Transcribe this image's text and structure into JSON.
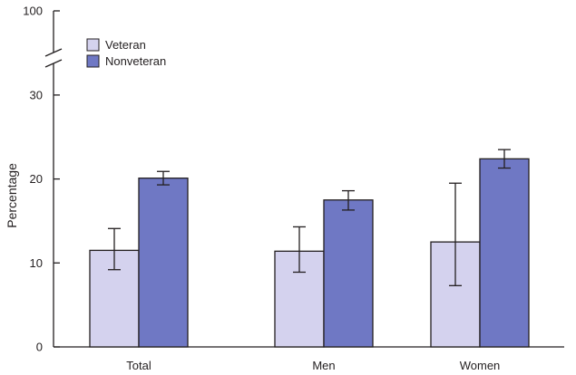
{
  "chart_data": {
    "type": "bar",
    "title": "",
    "xlabel": "",
    "ylabel": "Percentage",
    "ylim": [
      0,
      100
    ],
    "axis_break": {
      "from": 30,
      "to": 100
    },
    "yticks": [
      0,
      10,
      20,
      30,
      100
    ],
    "categories": [
      "Total",
      "Men",
      "Women"
    ],
    "series": [
      {
        "name": "Veteran",
        "color": "#d4d2ee",
        "values": [
          11.5,
          11.4,
          12.5
        ],
        "ci_lower": [
          9.2,
          8.9,
          7.3
        ],
        "ci_upper": [
          14.1,
          14.3,
          19.5
        ]
      },
      {
        "name": "Nonveteran",
        "color": "#6f78c4",
        "values": [
          20.1,
          17.5,
          22.4
        ],
        "ci_lower": [
          19.3,
          16.3,
          21.3
        ],
        "ci_upper": [
          20.9,
          18.6,
          23.5
        ]
      }
    ],
    "legend": {
      "position": "top-left"
    },
    "grid": false
  }
}
